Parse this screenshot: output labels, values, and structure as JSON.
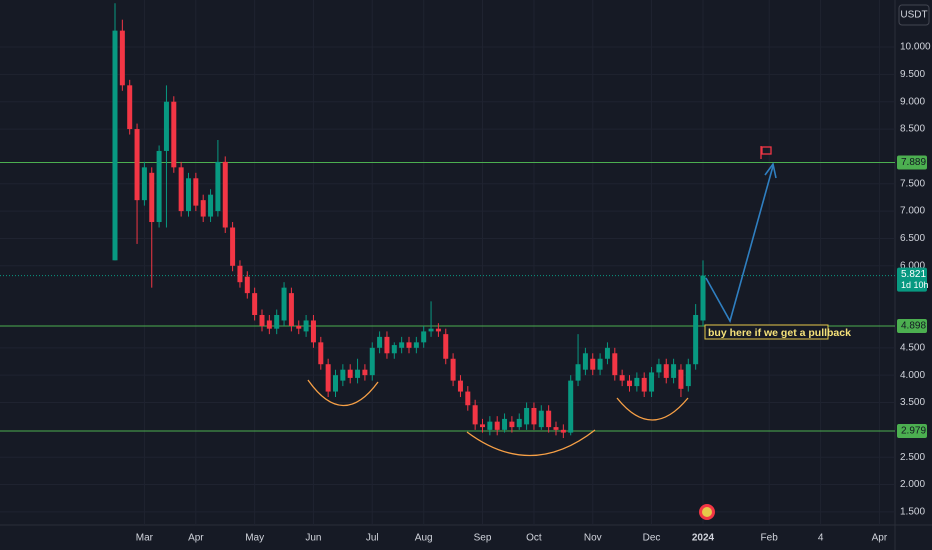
{
  "chart_data": {
    "type": "candlestick",
    "y_unit": "USDT",
    "categories": [
      null,
      null,
      null,
      null,
      "Mar",
      null,
      null,
      null,
      null,
      null,
      null,
      "Apr",
      null,
      null,
      null,
      null,
      null,
      null,
      null,
      "May",
      null,
      null,
      null,
      null,
      null,
      null,
      null,
      "Jun",
      null,
      null,
      null,
      null,
      null,
      null,
      null,
      "Jul",
      null,
      null,
      null,
      null,
      null,
      null,
      "Aug",
      null,
      null,
      null,
      null,
      null,
      null,
      null,
      "Sep",
      null,
      null,
      null,
      null,
      null,
      null,
      "Oct",
      null,
      null,
      null,
      null,
      null,
      null,
      null,
      "Nov",
      null,
      null,
      null,
      null,
      null,
      null,
      null,
      "Dec",
      null,
      null,
      null,
      null,
      null,
      null,
      "2024",
      null,
      null,
      null,
      null,
      null,
      null,
      null,
      null,
      "Feb",
      null,
      null,
      null,
      null,
      null,
      null,
      "4",
      null,
      null,
      null,
      null,
      null,
      null,
      null,
      "Apr",
      null,
      null
    ],
    "open": [
      6.1,
      10.3,
      9.3,
      8.5,
      7.2,
      7.7,
      6.8,
      8.1,
      9.0,
      7.8,
      7.0,
      7.6,
      7.2,
      6.9,
      7.0,
      7.9,
      6.7,
      6.0,
      5.8,
      5.5,
      5.1,
      5.0,
      4.85,
      5.0,
      5.5,
      4.9,
      4.8,
      5.0,
      4.6,
      4.2,
      3.7,
      3.9,
      4.1,
      3.95,
      4.1,
      4.0,
      4.5,
      4.7,
      4.4,
      4.5,
      4.6,
      4.5,
      4.6,
      4.8,
      4.85,
      4.75,
      4.3,
      3.9,
      3.7,
      3.45,
      3.1,
      3.0,
      3.15,
      3.0,
      3.15,
      3.05,
      3.1,
      3.4,
      3.05,
      3.35,
      3.05,
      3.0,
      2.95,
      3.9,
      4.1,
      4.3,
      4.1,
      4.3,
      4.4,
      4.0,
      3.9,
      3.8,
      3.95,
      3.7,
      4.05,
      4.2,
      3.95,
      4.1,
      3.8,
      4.2,
      5.0,
      null,
      null,
      null,
      null,
      null,
      null,
      null,
      null,
      null,
      null,
      null,
      null,
      null,
      null,
      null,
      null,
      null,
      null,
      null,
      null,
      null,
      null,
      null,
      null,
      null,
      null
    ],
    "high": [
      10.8,
      10.5,
      9.4,
      8.6,
      7.9,
      7.8,
      8.2,
      9.3,
      9.1,
      7.9,
      7.7,
      7.7,
      7.3,
      7.4,
      8.3,
      8.0,
      6.8,
      6.1,
      5.9,
      5.6,
      5.2,
      5.1,
      5.2,
      5.7,
      5.6,
      5.0,
      5.1,
      5.1,
      4.7,
      4.3,
      4.1,
      4.2,
      4.2,
      4.3,
      4.2,
      4.6,
      4.8,
      4.8,
      4.6,
      4.7,
      4.7,
      4.7,
      4.9,
      5.35,
      4.95,
      4.85,
      4.4,
      4.0,
      3.8,
      3.55,
      3.2,
      3.25,
      3.25,
      3.3,
      3.25,
      3.3,
      3.5,
      3.5,
      3.45,
      3.45,
      3.15,
      3.1,
      4.0,
      4.75,
      4.5,
      4.4,
      4.4,
      4.6,
      4.5,
      4.1,
      4.0,
      4.05,
      4.05,
      4.15,
      4.3,
      4.3,
      4.3,
      4.2,
      4.3,
      5.3,
      6.1,
      null,
      null,
      null,
      null,
      null,
      null,
      null,
      null,
      null,
      null,
      null,
      null,
      null,
      null,
      null,
      null,
      null,
      null,
      null,
      null,
      null,
      null,
      null,
      null,
      null,
      null
    ],
    "low": [
      6.1,
      9.2,
      8.4,
      6.4,
      7.1,
      5.6,
      6.7,
      6.7,
      7.7,
      6.9,
      6.9,
      7.0,
      6.8,
      6.8,
      6.9,
      6.6,
      5.9,
      5.6,
      5.4,
      5.0,
      4.8,
      4.75,
      4.75,
      4.9,
      4.8,
      4.75,
      4.7,
      4.5,
      4.1,
      3.6,
      3.6,
      3.8,
      3.85,
      3.85,
      3.9,
      3.9,
      4.4,
      4.3,
      4.3,
      4.4,
      4.4,
      4.4,
      4.5,
      4.7,
      4.7,
      4.2,
      3.8,
      3.6,
      3.35,
      3.0,
      2.95,
      2.9,
      2.9,
      2.95,
      2.95,
      3.0,
      3.0,
      3.0,
      3.0,
      2.95,
      2.9,
      2.85,
      2.9,
      3.8,
      4.0,
      4.0,
      4.0,
      4.2,
      3.9,
      3.8,
      3.7,
      3.7,
      3.6,
      3.6,
      3.95,
      3.85,
      3.85,
      3.6,
      3.7,
      4.1,
      4.9,
      null,
      null,
      null,
      null,
      null,
      null,
      null,
      null,
      null,
      null,
      null,
      null,
      null,
      null,
      null,
      null,
      null,
      null,
      null,
      null,
      null,
      null,
      null,
      null,
      null,
      null
    ],
    "close": [
      10.3,
      9.3,
      8.5,
      7.2,
      7.8,
      6.8,
      8.1,
      9.0,
      7.8,
      7.0,
      7.6,
      7.1,
      6.9,
      7.3,
      7.9,
      6.7,
      6.0,
      5.7,
      5.5,
      5.1,
      4.9,
      4.85,
      5.1,
      5.6,
      4.9,
      4.85,
      5.0,
      4.6,
      4.2,
      3.7,
      4.0,
      4.1,
      3.95,
      4.1,
      4.0,
      4.5,
      4.7,
      4.4,
      4.55,
      4.6,
      4.5,
      4.6,
      4.8,
      4.85,
      4.8,
      4.3,
      3.9,
      3.7,
      3.45,
      3.1,
      3.05,
      3.15,
      3.0,
      3.2,
      3.05,
      3.2,
      3.4,
      3.1,
      3.35,
      3.05,
      3.0,
      2.95,
      3.9,
      4.2,
      4.4,
      4.1,
      4.3,
      4.5,
      4.0,
      3.9,
      3.8,
      3.95,
      3.7,
      4.05,
      4.2,
      3.95,
      4.2,
      3.75,
      4.2,
      5.1,
      5.821,
      null,
      null,
      null,
      null,
      null,
      null,
      null,
      null,
      null,
      null,
      null,
      null,
      null,
      null,
      null,
      null,
      null,
      null,
      null,
      null,
      null,
      null,
      null,
      null,
      null,
      null
    ],
    "up_color": "#089981",
    "down_color": "#f23645",
    "ylim": [
      1.26,
      10.86
    ],
    "yticks": [
      {
        "value": 10,
        "label": "10.000"
      },
      {
        "value": 9.5,
        "label": "9.500"
      },
      {
        "value": 9,
        "label": "9.000"
      },
      {
        "value": 8.5,
        "label": "8.500"
      },
      {
        "value": 7.5,
        "label": "7.500"
      },
      {
        "value": 7,
        "label": "7.000"
      },
      {
        "value": 6.5,
        "label": "6.500"
      },
      {
        "value": 6,
        "label": "6.000"
      },
      {
        "value": 4.5,
        "label": "4.500"
      },
      {
        "value": 4,
        "label": "4.000"
      },
      {
        "value": 3.5,
        "label": "3.500"
      },
      {
        "value": 2.5,
        "label": "2.500"
      },
      {
        "value": 2,
        "label": "2.000"
      },
      {
        "value": 1.5,
        "label": "1.500"
      }
    ],
    "grid": true,
    "levels": [
      7.889,
      4.898,
      2.979
    ],
    "level_color": "#4caf50",
    "last_price": 5.821,
    "countdown": "1d 10h",
    "annotation": "buy here if we get a pullback"
  }
}
